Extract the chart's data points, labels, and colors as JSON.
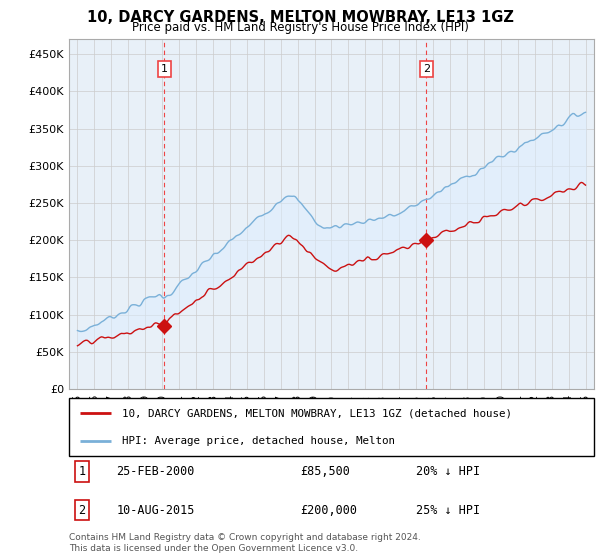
{
  "title": "10, DARCY GARDENS, MELTON MOWBRAY, LE13 1GZ",
  "subtitle": "Price paid vs. HM Land Registry's House Price Index (HPI)",
  "ylim": [
    0,
    470000
  ],
  "yticks": [
    0,
    50000,
    100000,
    150000,
    200000,
    250000,
    300000,
    350000,
    400000,
    450000
  ],
  "ytick_labels": [
    "£0",
    "£50K",
    "£100K",
    "£150K",
    "£200K",
    "£250K",
    "£300K",
    "£350K",
    "£400K",
    "£450K"
  ],
  "hpi_color": "#7ab0d8",
  "price_color": "#cc1111",
  "fill_color": "#ddeeff",
  "vline_color": "#ee4444",
  "marker1_year": 2000.13,
  "marker2_year": 2015.6,
  "sale1_price": 85500,
  "sale2_price": 200000,
  "legend_line1": "10, DARCY GARDENS, MELTON MOWBRAY, LE13 1GZ (detached house)",
  "legend_line2": "HPI: Average price, detached house, Melton",
  "table_row1": [
    "1",
    "25-FEB-2000",
    "£85,500",
    "20% ↓ HPI"
  ],
  "table_row2": [
    "2",
    "10-AUG-2015",
    "£200,000",
    "25% ↓ HPI"
  ],
  "footer": "Contains HM Land Registry data © Crown copyright and database right 2024.\nThis data is licensed under the Open Government Licence v3.0.",
  "background_color": "#ffffff",
  "chart_bg": "#e8f0f8",
  "grid_color": "#cccccc"
}
